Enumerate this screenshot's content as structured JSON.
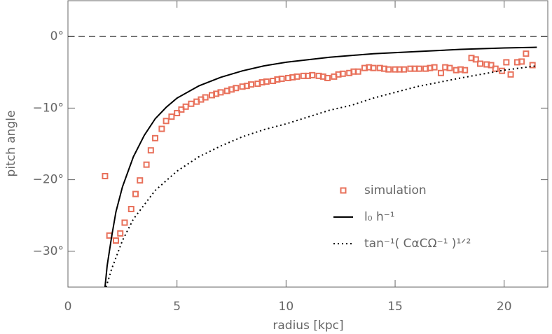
{
  "chart_data": {
    "type": "scatter-line",
    "xlabel": "radius [kpc]",
    "ylabel": "pitch angle",
    "xlim": [
      0,
      22
    ],
    "ylim": [
      -35,
      5
    ],
    "xticks": [
      0,
      5,
      10,
      15,
      20
    ],
    "yticks": [
      {
        "value": 0,
        "label": "0°"
      },
      {
        "value": -10,
        "label": "−10°"
      },
      {
        "value": -20,
        "label": "−20°"
      },
      {
        "value": -30,
        "label": "−30°"
      }
    ],
    "hline": 0,
    "legend": "lower right",
    "series": [
      {
        "name": "simulation",
        "color": "#e8705a",
        "marker": "square",
        "x": [
          1.7,
          1.9,
          2.2,
          2.4,
          2.6,
          2.9,
          3.1,
          3.3,
          3.6,
          3.8,
          4.0,
          4.3,
          4.5,
          4.75,
          5.0,
          5.2,
          5.4,
          5.65,
          5.9,
          6.1,
          6.3,
          6.6,
          6.8,
          7.0,
          7.3,
          7.5,
          7.7,
          8.0,
          8.2,
          8.4,
          8.7,
          8.9,
          9.1,
          9.4,
          9.6,
          9.8,
          10.1,
          10.3,
          10.5,
          10.8,
          11.0,
          11.2,
          11.5,
          11.7,
          11.9,
          12.2,
          12.4,
          12.6,
          12.9,
          13.1,
          13.3,
          13.6,
          13.8,
          14.0,
          14.3,
          14.5,
          14.7,
          15.0,
          15.2,
          15.4,
          15.7,
          15.9,
          16.1,
          16.4,
          16.6,
          16.8,
          17.1,
          17.3,
          17.5,
          17.8,
          18.0,
          18.2,
          18.5,
          18.7,
          18.9,
          19.2,
          19.4,
          19.6,
          19.9,
          20.1,
          20.3,
          20.6,
          20.8,
          21.0,
          21.3
        ],
        "values": [
          -19.5,
          -27.8,
          -28.5,
          -27.5,
          -26,
          -24.1,
          -22,
          -20.1,
          -17.9,
          -15.9,
          -14.2,
          -12.9,
          -11.8,
          -11.2,
          -10.7,
          -10.2,
          -9.8,
          -9.4,
          -9.1,
          -8.8,
          -8.5,
          -8.2,
          -8.0,
          -7.8,
          -7.6,
          -7.4,
          -7.2,
          -7.0,
          -6.9,
          -6.7,
          -6.6,
          -6.4,
          -6.3,
          -6.2,
          -6.0,
          -5.9,
          -5.8,
          -5.7,
          -5.6,
          -5.5,
          -5.5,
          -5.4,
          -5.5,
          -5.6,
          -5.8,
          -5.6,
          -5.3,
          -5.2,
          -5.1,
          -4.9,
          -4.9,
          -4.4,
          -4.3,
          -4.4,
          -4.4,
          -4.5,
          -4.6,
          -4.6,
          -4.6,
          -4.6,
          -4.5,
          -4.5,
          -4.5,
          -4.5,
          -4.4,
          -4.3,
          -5.1,
          -4.3,
          -4.4,
          -4.7,
          -4.6,
          -4.7,
          -3.0,
          -3.2,
          -3.8,
          -3.9,
          -4.0,
          -4.5,
          -4.8,
          -3.6,
          -5.3,
          -3.6,
          -3.5,
          -2.4,
          -4.0
        ]
      },
      {
        "name": "l₀ h⁻¹",
        "color": "#000000",
        "style": "solid",
        "x": [
          1.7,
          1.8,
          2,
          2.2,
          2.5,
          3,
          3.5,
          4,
          4.5,
          5,
          6,
          7,
          8,
          9,
          10,
          12,
          14,
          16,
          18,
          20,
          21.5
        ],
        "values": [
          -35,
          -32,
          -28,
          -24.5,
          -21,
          -16.8,
          -13.8,
          -11.5,
          -9.9,
          -8.6,
          -6.9,
          -5.7,
          -4.8,
          -4.1,
          -3.6,
          -2.9,
          -2.4,
          -2.1,
          -1.8,
          -1.6,
          -1.5
        ]
      },
      {
        "name": "tan⁻¹( CαCΩ⁻¹ )¹ᐟ²",
        "color": "#000000",
        "style": "dotted",
        "x": [
          1.75,
          2,
          2.5,
          3,
          4,
          5,
          6,
          7,
          8,
          9,
          10,
          12,
          13,
          14,
          16,
          18,
          20,
          21.5
        ],
        "values": [
          -35,
          -32.5,
          -28.5,
          -25.5,
          -21.5,
          -18.8,
          -16.8,
          -15.3,
          -14,
          -13,
          -12.2,
          -10.3,
          -9.6,
          -8.6,
          -7,
          -5.8,
          -4.7,
          -4.1
        ]
      }
    ]
  }
}
